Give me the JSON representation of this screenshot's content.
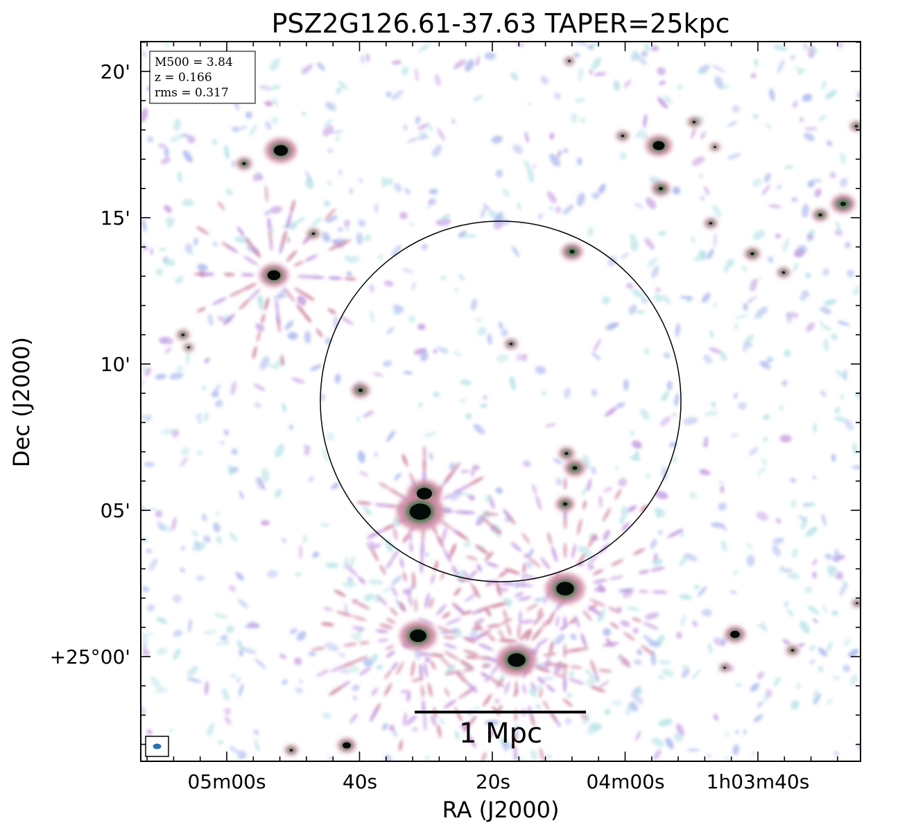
{
  "title": "PSZ2G126.61-37.63 TAPER=25kpc",
  "info_box": {
    "lines": [
      "M500 = 3.84",
      "z = 0.166",
      "rms = 0.317"
    ]
  },
  "axes": {
    "xlabel": "RA (J2000)",
    "ylabel": "Dec (J2000)",
    "x_ticks": [
      "05m00s",
      "40s",
      "20s",
      "04m00s",
      "1h03m40s"
    ],
    "y_ticks": [
      "20'",
      "15'",
      "10'",
      "05'",
      "+25°00'"
    ]
  },
  "scale_bar": {
    "label": "1 Mpc"
  },
  "colors": {
    "faint_cyan": "#b9e3e6",
    "faint_blue": "#aab8ee",
    "lilac": "#c49ae0",
    "pink": "#d08aa6",
    "green": "#3d7a4a",
    "core": "#050a08",
    "beam": "#2c6fb0"
  }
}
